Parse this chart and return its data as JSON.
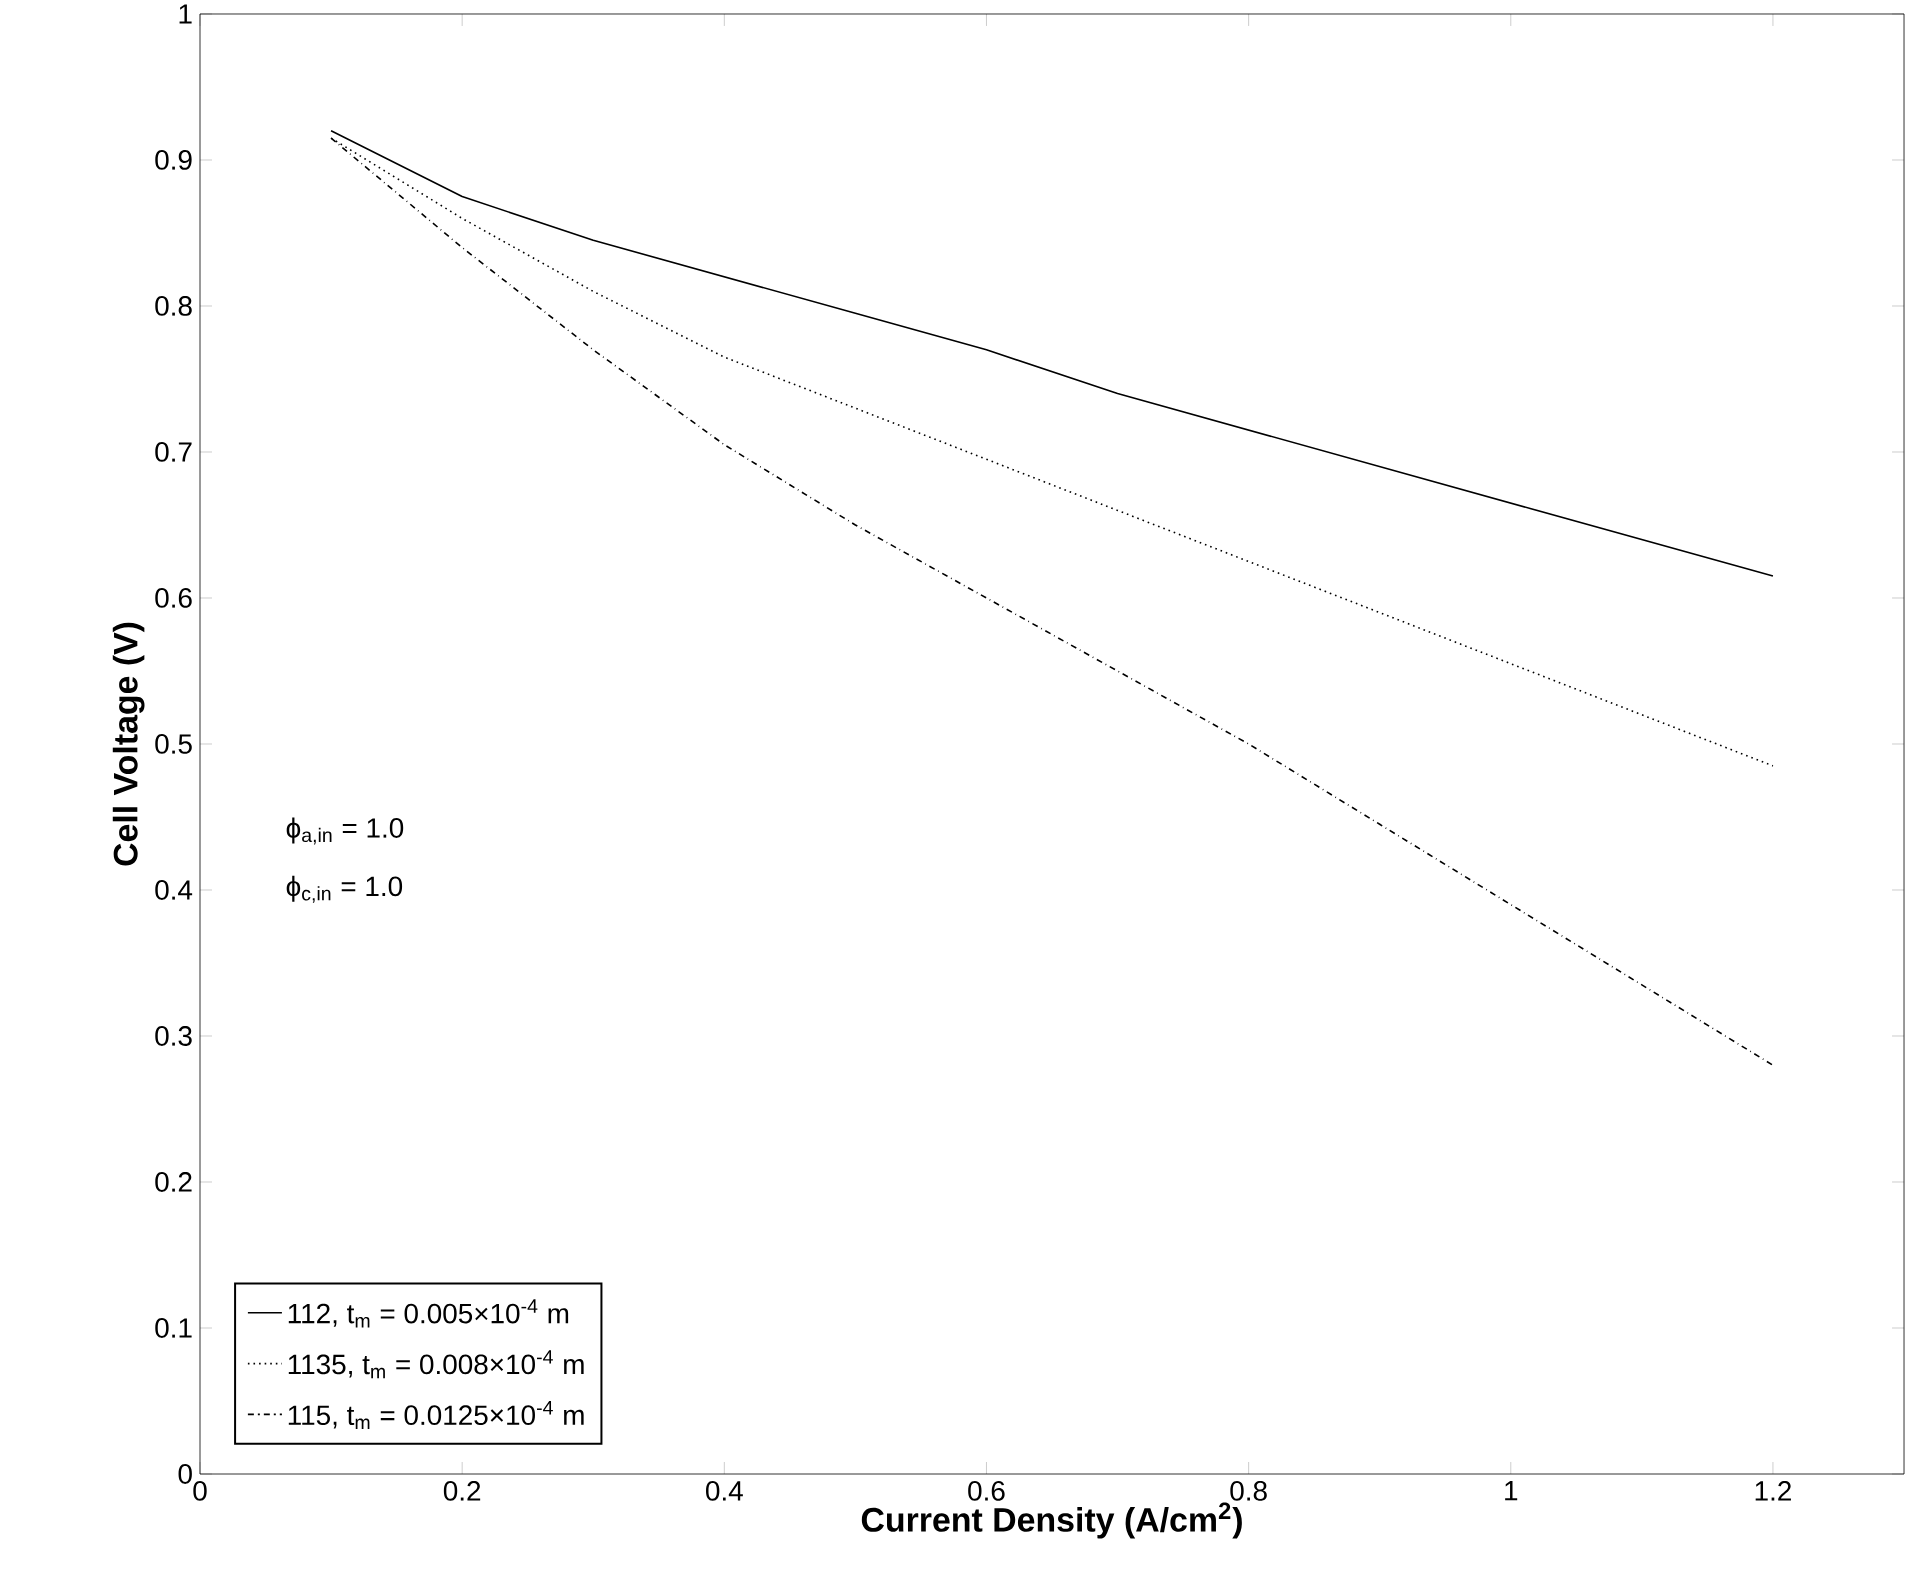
{
  "chart_data": {
    "type": "line",
    "xlabel": "Current Density (A/cm$^{2}$)",
    "ylabel": "Cell Voltage (V)",
    "x": [
      0.1,
      0.2,
      0.3,
      0.4,
      0.5,
      0.6,
      0.7,
      0.8,
      0.9,
      1.0,
      1.1,
      1.2
    ],
    "series": [
      {
        "name": "112,   t$_{m}$ = 0.005×10$^{-4}$ m",
        "color": "#000000",
        "line_style": "solid",
        "values": [
          0.92,
          0.875,
          0.845,
          0.82,
          0.795,
          0.77,
          0.74,
          0.715,
          0.69,
          0.665,
          0.64,
          0.615
        ]
      },
      {
        "name": "1135, t$_{m}$ = 0.008×10$^{-4}$ m",
        "color": "#000000",
        "line_style": "dotted",
        "values": [
          0.915,
          0.86,
          0.81,
          0.765,
          0.73,
          0.695,
          0.66,
          0.625,
          0.59,
          0.555,
          0.52,
          0.485
        ]
      },
      {
        "name": "115,   t$_{m}$ = 0.0125×10$^{-4}$ m",
        "color": "#000000",
        "line_style": "dashdot",
        "values": [
          0.915,
          0.84,
          0.77,
          0.705,
          0.65,
          0.6,
          0.55,
          0.5,
          0.445,
          0.39,
          0.335,
          0.28
        ]
      }
    ],
    "xlim": [
      0,
      1.3
    ],
    "xticks": [
      0,
      0.2,
      0.4,
      0.6,
      0.8,
      1,
      1.2
    ],
    "ylim": [
      0,
      1
    ],
    "yticks": [
      0,
      0.1,
      0.2,
      0.3,
      0.4,
      0.5,
      0.6,
      0.7,
      0.8,
      0.9,
      1
    ],
    "annotations": [
      "ϕ$_{a,in}$ = 1.0",
      "ϕ$_{c,in}$ = 1.0"
    ],
    "grid": false,
    "legend": "bottom left",
    "marker": "none"
  }
}
